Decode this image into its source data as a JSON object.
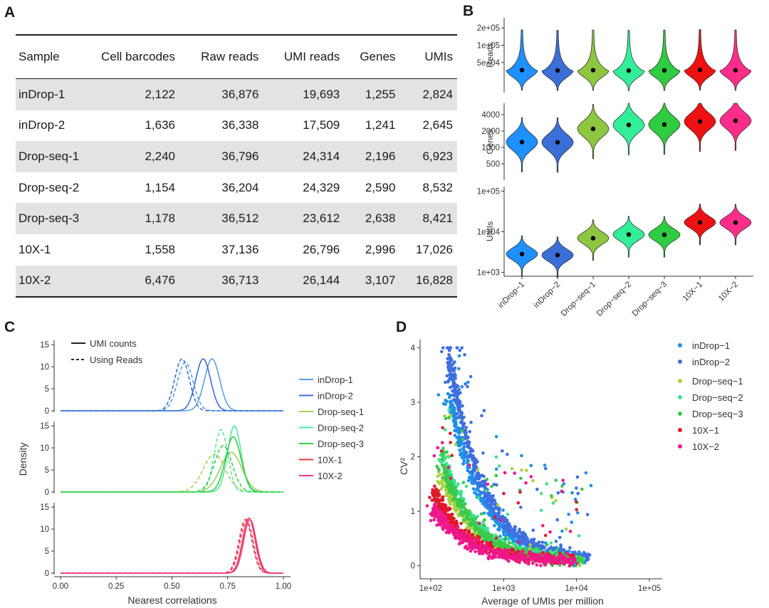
{
  "panels": {
    "a": "A",
    "b": "B",
    "c": "C",
    "d": "D"
  },
  "table": {
    "headers": [
      "Sample",
      "Cell barcodes",
      "Raw reads",
      "UMI reads",
      "Genes",
      "UMIs"
    ],
    "rows": [
      [
        "inDrop-1",
        "2,122",
        "36,876",
        "19,693",
        "1,255",
        "2,824"
      ],
      [
        "inDrop-2",
        "1,636",
        "36,338",
        "17,509",
        "1,241",
        "2,645"
      ],
      [
        "Drop-seq-1",
        "2,240",
        "36,796",
        "24,314",
        "2,196",
        "6,923"
      ],
      [
        "Drop-seq-2",
        "1,154",
        "36,204",
        "24,329",
        "2,590",
        "8,532"
      ],
      [
        "Drop-seq-3",
        "1,178",
        "36,512",
        "23,612",
        "2,638",
        "8,421"
      ],
      [
        "10X-1",
        "1,558",
        "37,136",
        "26,796",
        "2,996",
        "17,026"
      ],
      [
        "10X-2",
        "6,476",
        "36,713",
        "26,144",
        "3,107",
        "16,828"
      ]
    ]
  },
  "chart_data": [
    {
      "type": "violin",
      "panel": "B",
      "categories": [
        "inDrop−1",
        "inDrop−2",
        "Drop−seq−1",
        "Drop−seq−2",
        "Drop−seq−3",
        "10X−1",
        "10X−2"
      ],
      "colors": [
        "#1e90ff",
        "#3a6fd8",
        "#8dc63f",
        "#33ee99",
        "#2ecc40",
        "#ee1111",
        "#ff2d8a"
      ],
      "subplots": [
        {
          "ylabel": "Reads",
          "scale": "log",
          "ylim": [
            15000,
            300000
          ],
          "ticks": [
            {
              "v": 50000,
              "label": "5e+04"
            },
            {
              "v": 100000,
              "label": "1e+05"
            },
            {
              "v": 200000,
              "label": "2e+05"
            }
          ],
          "medians": [
            36876,
            36338,
            36796,
            36204,
            36512,
            37136,
            36713
          ]
        },
        {
          "ylabel": "Genes",
          "scale": "log",
          "ylim": [
            250,
            6500
          ],
          "ticks": [
            {
              "v": 500,
              "label": "500"
            },
            {
              "v": 1000,
              "label": "1000"
            },
            {
              "v": 2000,
              "label": "2000"
            },
            {
              "v": 4000,
              "label": "4000"
            }
          ],
          "medians": [
            1255,
            1241,
            2196,
            2590,
            2638,
            2996,
            3107
          ]
        },
        {
          "ylabel": "UMIs",
          "scale": "log",
          "ylim": [
            800,
            130000
          ],
          "ticks": [
            {
              "v": 1000,
              "label": "1e+03"
            },
            {
              "v": 10000,
              "label": "1e+04"
            },
            {
              "v": 100000,
              "label": "1e+05"
            }
          ],
          "medians": [
            2824,
            2645,
            6923,
            8532,
            8421,
            17026,
            16828
          ]
        }
      ]
    },
    {
      "type": "line",
      "panel": "C",
      "xlabel": "Nearest correlations",
      "ylabel": "Density",
      "xlim": [
        0,
        1
      ],
      "xticks": [
        "0.00",
        "0.25",
        "0.50",
        "0.75",
        "1.00"
      ],
      "yticks": [
        0,
        5,
        10,
        15
      ],
      "linetype_legend": [
        "UMI counts",
        "Using Reads"
      ],
      "series_legend": [
        {
          "name": "inDrop-1",
          "color": "#5aa0e8"
        },
        {
          "name": "inDrop-2",
          "color": "#3a6fd8"
        },
        {
          "name": "Drop-seq-1",
          "color": "#9dd060"
        },
        {
          "name": "Drop-seq-2",
          "color": "#55e8a0"
        },
        {
          "name": "Drop-seq-3",
          "color": "#35cc45"
        },
        {
          "name": "10X-1",
          "color": "#e83a3a"
        },
        {
          "name": "10X-2",
          "color": "#ee3a8a"
        }
      ],
      "facets": [
        {
          "series": [
            {
              "color": "#5aa0e8",
              "mu": 0.68,
              "sd": 0.034,
              "peak": 11.8,
              "dash": false
            },
            {
              "color": "#3a6fd8",
              "mu": 0.64,
              "sd": 0.033,
              "peak": 11.8,
              "dash": false
            },
            {
              "color": "#5aa0e8",
              "mu": 0.56,
              "sd": 0.035,
              "peak": 11.0,
              "dash": true
            },
            {
              "color": "#3a6fd8",
              "mu": 0.545,
              "sd": 0.033,
              "peak": 11.8,
              "dash": true
            }
          ]
        },
        {
          "series": [
            {
              "color": "#9dd060",
              "mu": 0.765,
              "sd": 0.048,
              "peak": 9.0,
              "dash": false
            },
            {
              "color": "#55e8a0",
              "mu": 0.78,
              "sd": 0.03,
              "peak": 15.0,
              "dash": false
            },
            {
              "color": "#35cc45",
              "mu": 0.775,
              "sd": 0.035,
              "peak": 12.5,
              "dash": false
            },
            {
              "color": "#9dd060",
              "mu": 0.69,
              "sd": 0.05,
              "peak": 8.5,
              "dash": true
            },
            {
              "color": "#55e8a0",
              "mu": 0.72,
              "sd": 0.03,
              "peak": 14.2,
              "dash": true
            },
            {
              "color": "#35cc45",
              "mu": 0.73,
              "sd": 0.04,
              "peak": 10.5,
              "dash": true
            }
          ]
        },
        {
          "series": [
            {
              "color": "#e83a3a",
              "mu": 0.845,
              "sd": 0.028,
              "peak": 12.5,
              "dash": false
            },
            {
              "color": "#ee3a8a",
              "mu": 0.85,
              "sd": 0.028,
              "peak": 12.2,
              "dash": false
            },
            {
              "color": "#e83a3a",
              "mu": 0.83,
              "sd": 0.029,
              "peak": 12.2,
              "dash": true
            },
            {
              "color": "#ee3a8a",
              "mu": 0.835,
              "sd": 0.029,
              "peak": 11.9,
              "dash": true
            }
          ]
        }
      ]
    },
    {
      "type": "scatter",
      "panel": "D",
      "xlabel": "Average of UMIs per million",
      "ylabel": "CV²",
      "xscale": "log",
      "xlim": [
        80,
        150000
      ],
      "ylim": [
        -0.2,
        4.15
      ],
      "xticks": [
        {
          "v": 100,
          "label": "1e+02"
        },
        {
          "v": 1000,
          "label": "1e+03"
        },
        {
          "v": 10000,
          "label": "1e+04"
        },
        {
          "v": 100000,
          "label": "1e+05"
        }
      ],
      "yticks": [
        0,
        1,
        2,
        3,
        4
      ],
      "series": [
        {
          "name": "inDrop−1",
          "color": "#1f8fe8",
          "x0": 190,
          "a": 2.9,
          "n": 500
        },
        {
          "name": "inDrop−2",
          "color": "#3d6fe0",
          "x0": 190,
          "a": 3.6,
          "n": 650
        },
        {
          "name": "Drop−seq−1",
          "color": "#a5d23c",
          "x0": 150,
          "a": 1.5,
          "n": 350
        },
        {
          "name": "Drop−seq−2",
          "color": "#3be38e",
          "x0": 150,
          "a": 1.9,
          "n": 350
        },
        {
          "name": "Drop−seq−3",
          "color": "#3ac94a",
          "x0": 150,
          "a": 1.7,
          "n": 400
        },
        {
          "name": "10X−1",
          "color": "#e0182b",
          "x0": 120,
          "a": 1.2,
          "n": 350
        },
        {
          "name": "10X−2",
          "color": "#f0168a",
          "x0": 120,
          "a": 0.9,
          "n": 450
        }
      ]
    }
  ]
}
